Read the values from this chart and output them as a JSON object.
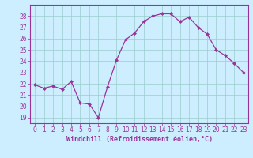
{
  "x": [
    0,
    1,
    2,
    3,
    4,
    5,
    6,
    7,
    8,
    9,
    10,
    11,
    12,
    13,
    14,
    15,
    16,
    17,
    18,
    19,
    20,
    21,
    22,
    23
  ],
  "y": [
    21.9,
    21.6,
    21.8,
    21.5,
    22.2,
    20.3,
    20.2,
    19.0,
    21.7,
    24.1,
    25.9,
    26.5,
    27.5,
    28.0,
    28.2,
    28.2,
    27.5,
    27.9,
    27.0,
    26.4,
    25.0,
    24.5,
    23.8,
    23.0
  ],
  "line_color": "#993399",
  "marker": "D",
  "marker_size": 2.0,
  "linewidth": 0.9,
  "xlabel": "Windchill (Refroidissement éolien,°C)",
  "xlabel_fontsize": 6.0,
  "xlim": [
    -0.5,
    23.5
  ],
  "ylim": [
    18.5,
    29.0
  ],
  "yticks": [
    19,
    20,
    21,
    22,
    23,
    24,
    25,
    26,
    27,
    28
  ],
  "xticks": [
    0,
    1,
    2,
    3,
    4,
    5,
    6,
    7,
    8,
    9,
    10,
    11,
    12,
    13,
    14,
    15,
    16,
    17,
    18,
    19,
    20,
    21,
    22,
    23
  ],
  "background_color": "#cceeff",
  "grid_color": "#99cccc",
  "tick_fontsize": 5.5,
  "tick_color": "#993399",
  "label_color": "#993399",
  "spine_color": "#993399"
}
